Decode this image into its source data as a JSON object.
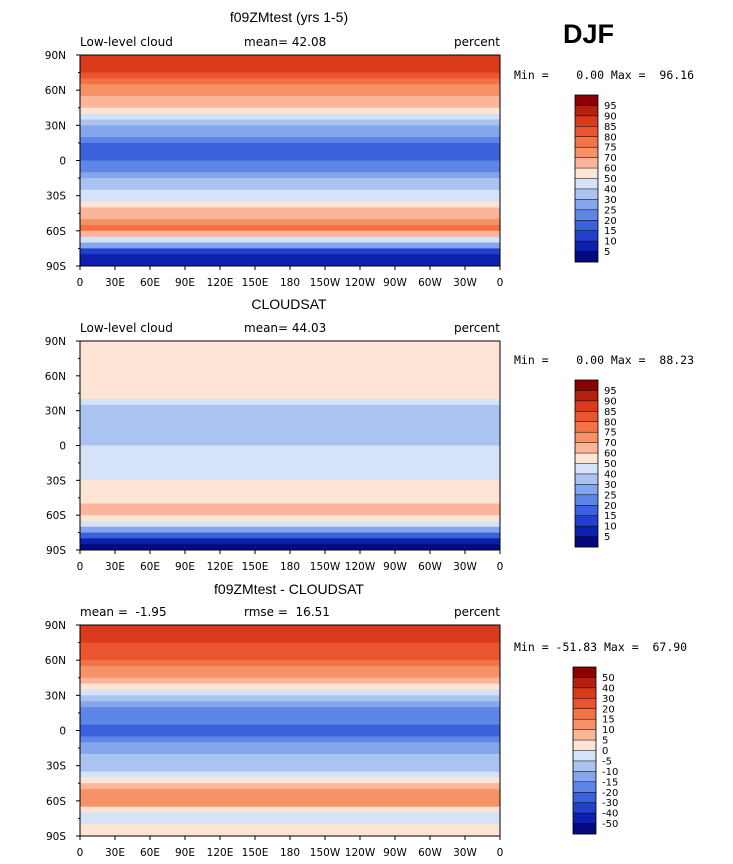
{
  "season": "DJF",
  "chart_data": [
    {
      "type": "heatmap",
      "title": "f09ZMtest (yrs 1-5)",
      "left_label": "Low-level cloud",
      "center_label": "mean=  42.08",
      "right_label": "percent",
      "mean": 42.08,
      "stats_text": "Min =    0.00 Max =  96.16",
      "min": 0.0,
      "max": 96.16,
      "xticks": [
        "0",
        "30E",
        "60E",
        "90E",
        "120E",
        "150E",
        "180",
        "150W",
        "120W",
        "90W",
        "60W",
        "30W",
        "0"
      ],
      "yticks": [
        "90N",
        "60N",
        "30N",
        "0",
        "30S",
        "60S",
        "90S"
      ],
      "colorbar_levels": [
        "95",
        "90",
        "85",
        "80",
        "75",
        "70",
        "60",
        "50",
        "40",
        "30",
        "25",
        "20",
        "15",
        "10",
        "5"
      ],
      "colorbar_colors": [
        "#8b0000",
        "#b5200f",
        "#d93a1c",
        "#ea5530",
        "#f27348",
        "#f79266",
        "#fbb59a",
        "#fde4d5",
        "#d6e2f7",
        "#aac3f0",
        "#83a6ec",
        "#5e86e6",
        "#3b62dc",
        "#2240cc",
        "#0d1fae",
        "#030a7f"
      ],
      "zonal_profile": [
        {
          "lat": 80,
          "value": 88
        },
        {
          "lat": 60,
          "value": 72
        },
        {
          "lat": 45,
          "value": 65
        },
        {
          "lat": 30,
          "value": 30
        },
        {
          "lat": 15,
          "value": 20
        },
        {
          "lat": 0,
          "value": 18
        },
        {
          "lat": -15,
          "value": 30
        },
        {
          "lat": -30,
          "value": 42
        },
        {
          "lat": -50,
          "value": 72
        },
        {
          "lat": -60,
          "value": 78
        },
        {
          "lat": -75,
          "value": 15
        },
        {
          "lat": -85,
          "value": 5
        }
      ]
    },
    {
      "type": "heatmap",
      "title": "CLOUDSAT",
      "left_label": "Low-level cloud",
      "center_label": "mean=  44.03",
      "right_label": "percent",
      "mean": 44.03,
      "stats_text": "Min =    0.00 Max =  88.23",
      "min": 0.0,
      "max": 88.23,
      "xticks": [
        "0",
        "30E",
        "60E",
        "90E",
        "120E",
        "150E",
        "180",
        "150W",
        "120W",
        "90W",
        "60W",
        "30W",
        "0"
      ],
      "yticks": [
        "90N",
        "60N",
        "30N",
        "0",
        "30S",
        "60S",
        "90S"
      ],
      "colorbar_levels": [
        "95",
        "90",
        "85",
        "80",
        "75",
        "70",
        "60",
        "50",
        "40",
        "30",
        "25",
        "20",
        "15",
        "10",
        "5"
      ],
      "colorbar_colors": [
        "#8b0000",
        "#b5200f",
        "#d93a1c",
        "#ea5530",
        "#f27348",
        "#f79266",
        "#fbb59a",
        "#fde4d5",
        "#d6e2f7",
        "#aac3f0",
        "#83a6ec",
        "#5e86e6",
        "#3b62dc",
        "#2240cc",
        "#0d1fae",
        "#030a7f"
      ],
      "zonal_profile": [
        {
          "lat": 80,
          "value": 50
        },
        {
          "lat": 60,
          "value": 58
        },
        {
          "lat": 45,
          "value": 55
        },
        {
          "lat": 30,
          "value": 35
        },
        {
          "lat": 15,
          "value": 38
        },
        {
          "lat": 0,
          "value": 40
        },
        {
          "lat": -15,
          "value": 42
        },
        {
          "lat": -30,
          "value": 50
        },
        {
          "lat": -50,
          "value": 60
        },
        {
          "lat": -60,
          "value": 65
        },
        {
          "lat": -75,
          "value": 20
        },
        {
          "lat": -85,
          "value": 3
        }
      ]
    },
    {
      "type": "heatmap",
      "title": "f09ZMtest - CLOUDSAT",
      "left_label": "mean =  -1.95",
      "center_label": "rmse =  16.51",
      "right_label": "percent",
      "mean": -1.95,
      "rmse": 16.51,
      "stats_text": "Min = -51.83 Max =  67.90",
      "min": -51.83,
      "max": 67.9,
      "xticks": [
        "0",
        "30E",
        "60E",
        "90E",
        "120E",
        "150E",
        "180",
        "150W",
        "120W",
        "90W",
        "60W",
        "30W",
        "0"
      ],
      "yticks": [
        "90N",
        "60N",
        "30N",
        "0",
        "30S",
        "60S",
        "90S"
      ],
      "colorbar_levels": [
        "50",
        "40",
        "30",
        "20",
        "15",
        "10",
        "5",
        "0",
        "-5",
        "-10",
        "-15",
        "-20",
        "-30",
        "-40",
        "-50"
      ],
      "colorbar_colors": [
        "#8b0000",
        "#b5200f",
        "#d93a1c",
        "#ea5530",
        "#f27348",
        "#f79266",
        "#fbb59a",
        "#fde4d5",
        "#d6e2f7",
        "#aac3f0",
        "#83a6ec",
        "#5e86e6",
        "#3b62dc",
        "#2240cc",
        "#0d1fae",
        "#030a7f"
      ],
      "zonal_profile": [
        {
          "lat": 80,
          "value": 35
        },
        {
          "lat": 60,
          "value": 18
        },
        {
          "lat": 45,
          "value": 10
        },
        {
          "lat": 30,
          "value": -5
        },
        {
          "lat": 15,
          "value": -18
        },
        {
          "lat": 0,
          "value": -22
        },
        {
          "lat": -15,
          "value": -12
        },
        {
          "lat": -30,
          "value": -8
        },
        {
          "lat": -50,
          "value": 12
        },
        {
          "lat": -60,
          "value": 13
        },
        {
          "lat": -75,
          "value": -5
        },
        {
          "lat": -85,
          "value": 2
        }
      ]
    }
  ]
}
